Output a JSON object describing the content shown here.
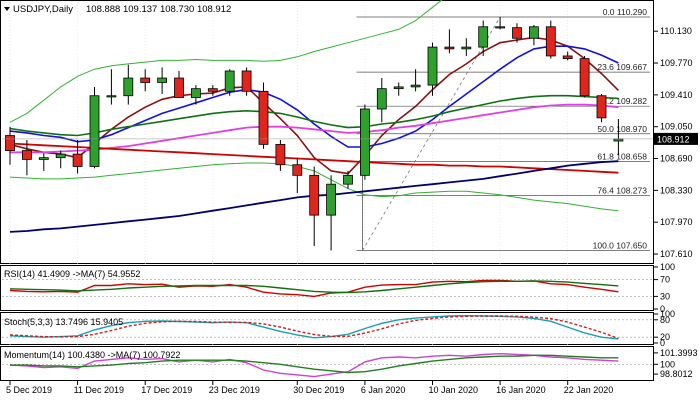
{
  "app": {
    "symbol_label": "USDJPY,Daily",
    "ohlc_label": "108.888 109.137 108.730 108.912",
    "last_price": "108.912"
  },
  "colors": {
    "background": "#ffffff",
    "grid": "#c8c8c8",
    "bull_candle": "#2ea02e",
    "bear_candle": "#e0261c",
    "bollinger": "#33b233",
    "ema_fast": "#8b1010",
    "ema_mid": "#1010e0",
    "ma_green_dark": "#107010",
    "ma_magenta": "#e040e0",
    "ma_red": "#d00000",
    "ma_navy": "#000070",
    "fib_line": "#555555"
  },
  "chart_data": [
    {
      "type": "candlestick",
      "title": "USDJPY,Daily",
      "ylim": [
        107.52,
        110.46
      ],
      "y_ticks": [
        "110.130",
        "109.770",
        "109.410",
        "109.050",
        "108.690",
        "108.330",
        "107.970",
        "107.610"
      ],
      "y_tick_values": [
        110.13,
        109.77,
        109.41,
        109.05,
        108.69,
        108.33,
        107.97,
        107.61
      ],
      "x_labels": [
        "5 Dec 2019",
        "11 Dec 2019",
        "17 Dec 2019",
        "23 Dec 2019",
        "30 Dec 2019",
        "6 Jan 2020",
        "10 Jan 2020",
        "16 Jan 2020",
        "22 Jan 2020"
      ],
      "x_label_index": [
        0,
        4,
        8,
        12,
        17,
        21,
        25,
        29,
        33
      ],
      "candles": [
        {
          "o": 108.95,
          "h": 109.05,
          "l": 108.62,
          "c": 108.78
        },
        {
          "o": 108.78,
          "h": 108.9,
          "l": 108.5,
          "c": 108.68
        },
        {
          "o": 108.68,
          "h": 108.75,
          "l": 108.55,
          "c": 108.7
        },
        {
          "o": 108.7,
          "h": 108.78,
          "l": 108.58,
          "c": 108.74
        },
        {
          "o": 108.74,
          "h": 108.9,
          "l": 108.52,
          "c": 108.6
        },
        {
          "o": 108.6,
          "h": 109.5,
          "l": 108.58,
          "c": 109.4
        },
        {
          "o": 109.4,
          "h": 109.7,
          "l": 109.3,
          "c": 109.4
        },
        {
          "o": 109.4,
          "h": 109.75,
          "l": 109.3,
          "c": 109.6
        },
        {
          "o": 109.6,
          "h": 109.7,
          "l": 109.45,
          "c": 109.55
        },
        {
          "o": 109.55,
          "h": 109.72,
          "l": 109.42,
          "c": 109.6
        },
        {
          "o": 109.6,
          "h": 109.68,
          "l": 109.38,
          "c": 109.38
        },
        {
          "o": 109.38,
          "h": 109.52,
          "l": 109.3,
          "c": 109.48
        },
        {
          "o": 109.48,
          "h": 109.52,
          "l": 109.4,
          "c": 109.45
        },
        {
          "o": 109.45,
          "h": 109.7,
          "l": 109.4,
          "c": 109.68
        },
        {
          "o": 109.68,
          "h": 109.72,
          "l": 109.4,
          "c": 109.45
        },
        {
          "o": 109.45,
          "h": 109.55,
          "l": 108.8,
          "c": 108.85
        },
        {
          "o": 108.85,
          "h": 108.9,
          "l": 108.55,
          "c": 108.62
        },
        {
          "o": 108.62,
          "h": 108.7,
          "l": 108.3,
          "c": 108.5
        },
        {
          "o": 108.5,
          "h": 108.6,
          "l": 107.7,
          "c": 108.05
        },
        {
          "o": 108.05,
          "h": 108.5,
          "l": 107.65,
          "c": 108.4
        },
        {
          "o": 108.4,
          "h": 108.55,
          "l": 108.35,
          "c": 108.5
        },
        {
          "o": 108.5,
          "h": 109.3,
          "l": 108.45,
          "c": 109.25
        },
        {
          "o": 109.25,
          "h": 109.6,
          "l": 109.1,
          "c": 109.48
        },
        {
          "o": 109.48,
          "h": 109.55,
          "l": 109.4,
          "c": 109.5
        },
        {
          "o": 109.5,
          "h": 109.7,
          "l": 109.45,
          "c": 109.52
        },
        {
          "o": 109.52,
          "h": 110.0,
          "l": 109.4,
          "c": 109.95
        },
        {
          "o": 109.95,
          "h": 110.15,
          "l": 109.88,
          "c": 109.93
        },
        {
          "o": 109.93,
          "h": 110.05,
          "l": 109.85,
          "c": 109.95
        },
        {
          "o": 109.95,
          "h": 110.25,
          "l": 109.85,
          "c": 110.18
        },
        {
          "o": 110.18,
          "h": 110.29,
          "l": 110.15,
          "c": 110.17
        },
        {
          "o": 110.17,
          "h": 110.22,
          "l": 110.0,
          "c": 110.05
        },
        {
          "o": 110.05,
          "h": 110.2,
          "l": 109.97,
          "c": 110.18
        },
        {
          "o": 110.18,
          "h": 110.25,
          "l": 109.82,
          "c": 109.85
        },
        {
          "o": 109.85,
          "h": 109.9,
          "l": 109.8,
          "c": 109.82
        },
        {
          "o": 109.82,
          "h": 109.85,
          "l": 109.38,
          "c": 109.4
        },
        {
          "o": 109.4,
          "h": 109.42,
          "l": 109.1,
          "c": 109.15
        },
        {
          "o": 108.888,
          "h": 109.137,
          "l": 108.73,
          "c": 108.912
        }
      ],
      "overlays": [
        {
          "key": "bb_upper",
          "color": "#33b233",
          "values": [
            109.1,
            109.2,
            109.35,
            109.5,
            109.62,
            109.7,
            109.74,
            109.76,
            109.78,
            109.8,
            109.8,
            109.81,
            109.8,
            109.8,
            109.8,
            109.79,
            109.8,
            109.84,
            109.9,
            109.95,
            110.0,
            110.05,
            110.1,
            110.15,
            110.25,
            110.4,
            110.55,
            110.7,
            110.82,
            110.9,
            110.95,
            110.98,
            111.0,
            111.0,
            110.98,
            110.95,
            110.9
          ]
        },
        {
          "key": "bb_lower",
          "color": "#33b233",
          "values": [
            108.48,
            108.47,
            108.46,
            108.46,
            108.47,
            108.48,
            108.5,
            108.52,
            108.54,
            108.56,
            108.58,
            108.6,
            108.62,
            108.63,
            108.64,
            108.64,
            108.63,
            108.6,
            108.55,
            108.45,
            108.35,
            108.28,
            108.26,
            108.27,
            108.3,
            108.31,
            108.32,
            108.32,
            108.3,
            108.28,
            108.25,
            108.22,
            108.2,
            108.18,
            108.15,
            108.12,
            108.1
          ]
        },
        {
          "key": "ema_fast",
          "color": "#8b1010",
          "values": [
            108.85,
            108.8,
            108.76,
            108.74,
            108.7,
            108.86,
            109.02,
            109.16,
            109.27,
            109.36,
            109.4,
            109.42,
            109.43,
            109.49,
            109.5,
            109.32,
            109.14,
            108.95,
            108.7,
            108.55,
            108.52,
            108.72,
            108.95,
            109.13,
            109.28,
            109.47,
            109.64,
            109.76,
            109.9,
            110.0,
            110.03,
            110.06,
            110.03,
            109.96,
            109.82,
            109.65,
            109.46
          ]
        },
        {
          "key": "ema_mid",
          "color": "#1010e0",
          "values": [
            109.0,
            108.98,
            108.95,
            108.93,
            108.88,
            108.9,
            108.96,
            109.04,
            109.12,
            109.2,
            109.26,
            109.32,
            109.38,
            109.44,
            109.47,
            109.44,
            109.36,
            109.24,
            109.08,
            108.94,
            108.82,
            108.82,
            108.86,
            108.92,
            109.0,
            109.13,
            109.28,
            109.42,
            109.56,
            109.7,
            109.83,
            109.93,
            109.96,
            109.96,
            109.93,
            109.86,
            109.77
          ]
        },
        {
          "key": "ma_green_dark",
          "color": "#107010",
          "values": [
            109.03,
            109.0,
            108.98,
            108.96,
            108.95,
            108.98,
            109.02,
            109.05,
            109.08,
            109.11,
            109.14,
            109.17,
            109.2,
            109.22,
            109.23,
            109.22,
            109.2,
            109.16,
            109.11,
            109.07,
            109.04,
            109.05,
            109.08,
            109.1,
            109.13,
            109.17,
            109.22,
            109.26,
            109.3,
            109.34,
            109.37,
            109.39,
            109.4,
            109.4,
            109.39,
            109.38,
            109.37
          ]
        },
        {
          "key": "ma_magenta",
          "color": "#e040e0",
          "values": [
            108.76,
            108.76,
            108.76,
            108.77,
            108.78,
            108.79,
            108.81,
            108.83,
            108.86,
            108.89,
            108.92,
            108.95,
            108.98,
            109.01,
            109.04,
            109.05,
            109.05,
            109.04,
            109.02,
            109.0,
            108.98,
            108.99,
            109.01,
            109.04,
            109.06,
            109.09,
            109.12,
            109.15,
            109.18,
            109.21,
            109.24,
            109.27,
            109.29,
            109.3,
            109.3,
            109.29,
            109.27
          ]
        },
        {
          "key": "ma_red",
          "color": "#d00000",
          "values": [
            108.86,
            108.85,
            108.84,
            108.83,
            108.82,
            108.81,
            108.8,
            108.79,
            108.78,
            108.77,
            108.76,
            108.75,
            108.74,
            108.73,
            108.72,
            108.71,
            108.7,
            108.69,
            108.68,
            108.67,
            108.66,
            108.65,
            108.64,
            108.63,
            108.62,
            108.62,
            108.61,
            108.61,
            108.6,
            108.6,
            108.59,
            108.58,
            108.57,
            108.56,
            108.55,
            108.54,
            108.53
          ]
        },
        {
          "key": "ma_navy",
          "color": "#000070",
          "values": [
            107.86,
            107.87,
            107.89,
            107.9,
            107.92,
            107.94,
            107.96,
            107.98,
            108.0,
            108.02,
            108.04,
            108.07,
            108.1,
            108.13,
            108.16,
            108.19,
            108.22,
            108.25,
            108.27,
            108.28,
            108.3,
            108.32,
            108.34,
            108.36,
            108.38,
            108.4,
            108.42,
            108.44,
            108.46,
            108.49,
            108.52,
            108.55,
            108.58,
            108.61,
            108.63,
            108.65,
            108.66
          ]
        }
      ],
      "fibonacci": [
        {
          "label": "0.0 110.290",
          "value": 110.29
        },
        {
          "label": "23.6 109.667",
          "value": 109.667
        },
        {
          "label": "38.2 109.282",
          "value": 109.282
        },
        {
          "label": "50.0 108.970",
          "value": 108.97
        },
        {
          "label": "61.8 108.658",
          "value": 108.658
        },
        {
          "label": "76.4 108.273",
          "value": 108.273
        },
        {
          "label": "100.0 107.650",
          "value": 107.65
        }
      ]
    },
    {
      "type": "line",
      "title": "RSI(14) 41.4909 ->MA(7) 54.9552",
      "ylim": [
        0,
        100
      ],
      "y_ticks": [
        "100",
        "70",
        "30",
        "0"
      ],
      "y_tick_values": [
        100,
        70,
        30,
        0
      ],
      "series": [
        {
          "color": "#d00000",
          "values": [
            44,
            42,
            41,
            42,
            40,
            56,
            56,
            60,
            58,
            59,
            52,
            55,
            54,
            58,
            52,
            40,
            36,
            34,
            30,
            38,
            40,
            52,
            57,
            58,
            58,
            64,
            66,
            65,
            68,
            68,
            66,
            67,
            60,
            58,
            52,
            47,
            41
          ]
        },
        {
          "color": "#107010",
          "values": [
            48,
            47,
            46,
            45,
            43,
            45,
            47,
            50,
            52,
            54,
            55,
            56,
            56,
            56,
            56,
            54,
            50,
            46,
            42,
            40,
            39,
            41,
            44,
            48,
            52,
            56,
            60,
            63,
            65,
            66,
            66,
            67,
            66,
            64,
            61,
            58,
            55
          ]
        }
      ]
    },
    {
      "type": "line",
      "title": "Stoch(5,3,3) 13.7496 15.9405",
      "ylim": [
        0,
        100
      ],
      "y_ticks": [
        "100",
        "80",
        "20",
        "0"
      ],
      "y_tick_values": [
        100,
        80,
        20,
        0
      ],
      "series": [
        {
          "color": "#1a9fb0",
          "values": [
            25,
            22,
            20,
            22,
            25,
            45,
            60,
            70,
            75,
            76,
            74,
            72,
            70,
            72,
            70,
            55,
            40,
            28,
            18,
            22,
            30,
            50,
            68,
            80,
            86,
            90,
            93,
            94,
            93,
            92,
            90,
            85,
            75,
            55,
            35,
            20,
            14
          ]
        },
        {
          "color": "#cc2020",
          "dash": "3,2",
          "values": [
            28,
            25,
            22,
            21,
            22,
            30,
            43,
            58,
            68,
            73,
            75,
            74,
            72,
            71,
            71,
            66,
            55,
            41,
            29,
            23,
            23,
            34,
            49,
            66,
            78,
            85,
            90,
            92,
            93,
            93,
            92,
            89,
            84,
            72,
            55,
            37,
            16
          ]
        }
      ]
    },
    {
      "type": "line",
      "title": "Momentum(14) 100.4380 ->MA(7) 100.7922",
      "ylim": [
        98.2,
        102.0
      ],
      "y_ticks": [
        "101.3993",
        "100",
        "98.8012"
      ],
      "y_tick_values": [
        101.3993,
        100,
        98.8012
      ],
      "series": [
        {
          "color": "#d040d0",
          "values": [
            99.9,
            99.8,
            99.6,
            99.7,
            99.5,
            100.4,
            100.6,
            100.8,
            100.6,
            100.7,
            100.3,
            100.5,
            100.3,
            100.6,
            100.2,
            99.3,
            98.9,
            98.7,
            98.5,
            98.8,
            99.1,
            100.3,
            100.8,
            100.9,
            100.8,
            101.0,
            101.1,
            101.0,
            101.2,
            101.3,
            101.2,
            101.1,
            100.9,
            100.8,
            100.6,
            100.5,
            100.4
          ]
        },
        {
          "color": "#208020",
          "values": [
            99.9,
            99.9,
            99.8,
            99.8,
            99.7,
            99.8,
            99.9,
            100.1,
            100.2,
            100.4,
            100.5,
            100.5,
            100.5,
            100.5,
            100.4,
            100.2,
            100.0,
            99.7,
            99.4,
            99.2,
            99.0,
            99.1,
            99.4,
            99.8,
            100.1,
            100.4,
            100.6,
            100.8,
            100.9,
            101.0,
            101.0,
            101.1,
            101.1,
            101.0,
            100.9,
            100.8,
            100.8
          ]
        }
      ]
    }
  ]
}
